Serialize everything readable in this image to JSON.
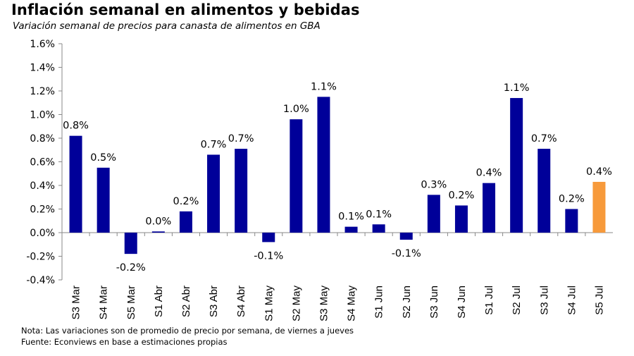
{
  "title": "Inflación semanal en alimentos y bebidas",
  "subtitle": "Variación semanal de precios para canasta de alimentos en GBA",
  "notes": {
    "nota": "Nota: Las variaciones son de promedio de precio por semana, de viernes a jueves",
    "fuente": "Fuente: Econviews en base a estimaciones propias"
  },
  "chart_data": {
    "type": "bar",
    "title": "Inflación semanal en alimentos y bebidas",
    "subtitle": "Variación semanal de precios para canasta de alimentos en GBA",
    "categories": [
      "S3 Mar",
      "S4 Mar",
      "S5 Mar",
      "S1 Abr",
      "S2 Abr",
      "S3 Abr",
      "S4 Abr",
      "S1 May",
      "S2 May",
      "S3 May",
      "S4 May",
      "S1 Jun",
      "S2 Jun",
      "S3 Jun",
      "S4 Jun",
      "S1 Jul",
      "S2 Jul",
      "S3 Jul",
      "S4 Jul",
      "S5 Jul"
    ],
    "values": [
      0.82,
      0.55,
      -0.18,
      0.01,
      0.18,
      0.66,
      0.71,
      -0.08,
      0.96,
      1.15,
      0.05,
      0.07,
      -0.06,
      0.32,
      0.23,
      0.42,
      1.14,
      0.71,
      0.2,
      0.43
    ],
    "data_labels": [
      "0.8%",
      "0.5%",
      "-0.2%",
      "0.0%",
      "0.2%",
      "0.7%",
      "0.7%",
      "-0.1%",
      "1.0%",
      "1.1%",
      "0.1%",
      "0.1%",
      "-0.1%",
      "0.3%",
      "0.2%",
      "0.4%",
      "1.1%",
      "0.7%",
      "0.2%",
      "0.4%"
    ],
    "yticks": [
      "1.6%",
      "1.4%",
      "1.2%",
      "1.0%",
      "0.8%",
      "0.6%",
      "0.4%",
      "0.2%",
      "0.0%",
      "-0.2%",
      "-0.4%"
    ],
    "ylim": [
      -0.4,
      1.6
    ],
    "colors": {
      "default": "#000099",
      "highlight": "#F79A3B",
      "highlight_index": 19
    },
    "grid": false,
    "legend": "none"
  }
}
